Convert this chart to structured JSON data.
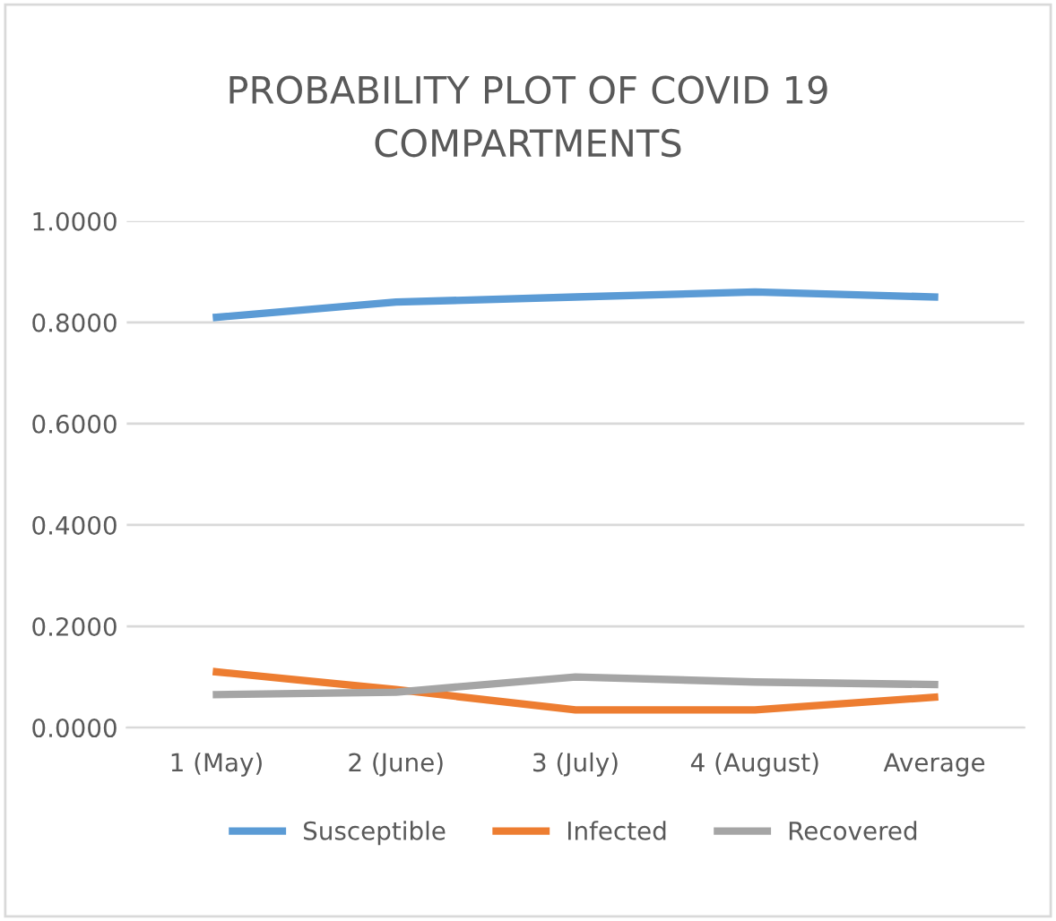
{
  "chart_data": {
    "type": "line",
    "title": "PROBABILITY PLOT OF COVID 19\nCOMPARTMENTS",
    "categories": [
      "1 (May)",
      "2 (June)",
      "3 (July)",
      "4 (August)",
      "Average"
    ],
    "series": [
      {
        "name": "Susceptible",
        "color": "#5b9bd5",
        "values": [
          0.81,
          0.84,
          0.85,
          0.86,
          0.85
        ]
      },
      {
        "name": "Infected",
        "color": "#ed7d31",
        "values": [
          0.11,
          0.075,
          0.035,
          0.035,
          0.06
        ]
      },
      {
        "name": "Recovered",
        "color": "#a5a5a5",
        "values": [
          0.065,
          0.07,
          0.1,
          0.09,
          0.085
        ]
      }
    ],
    "ylim": [
      0,
      1
    ],
    "yticks": [
      {
        "value": 0,
        "label": "0.0000"
      },
      {
        "value": 0.2,
        "label": "0.2000"
      },
      {
        "value": 0.4,
        "label": "0.4000"
      },
      {
        "value": 0.6,
        "label": "0.6000"
      },
      {
        "value": 0.8,
        "label": "0.8000"
      },
      {
        "value": 1,
        "label": "1.0000"
      }
    ],
    "grid": "y",
    "legend": "bottom",
    "marker": "none",
    "line_style": "solid"
  }
}
